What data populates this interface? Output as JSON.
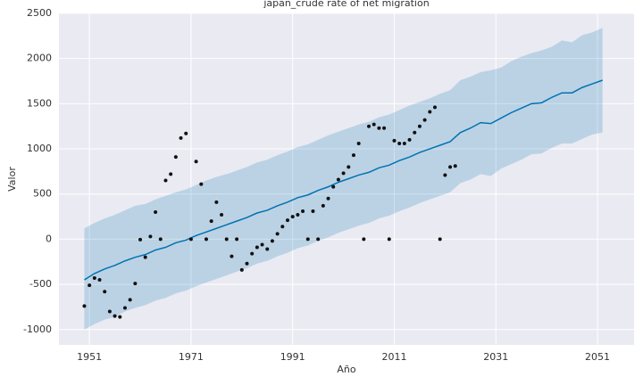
{
  "chart_data": {
    "type": "line",
    "title": "japan_crude rate of net migration",
    "x_label": "Año",
    "y_label": "Valor",
    "xlim": [
      1945,
      2058.2
    ],
    "ylim": [
      -1170,
      2500
    ],
    "xticks": [
      1951,
      1971,
      1991,
      2011,
      2031,
      2051
    ],
    "yticks": [
      -1000,
      -500,
      0,
      500,
      1000,
      1500,
      2000,
      2500
    ],
    "grid": true,
    "observed": {
      "color": "#111111",
      "x": [
        1950,
        1951,
        1952,
        1953,
        1954,
        1955,
        1956,
        1957,
        1958,
        1959,
        1960,
        1961,
        1962,
        1963,
        1964,
        1965,
        1966,
        1967,
        1968,
        1969,
        1970,
        1971,
        1972,
        1973,
        1974,
        1975,
        1976,
        1977,
        1978,
        1979,
        1980,
        1981,
        1982,
        1983,
        1984,
        1985,
        1986,
        1987,
        1988,
        1989,
        1990,
        1991,
        1992,
        1993,
        1994,
        1995,
        1996,
        1997,
        1998,
        1999,
        2000,
        2001,
        2002,
        2003,
        2004,
        2005,
        2006,
        2007,
        2008,
        2009,
        2010,
        2011,
        2012,
        2013,
        2014,
        2015,
        2016,
        2017,
        2018,
        2019,
        2020,
        2021,
        2022,
        2023
      ],
      "values": [
        -740,
        -510,
        -430,
        -450,
        -580,
        -800,
        -850,
        -860,
        -760,
        -670,
        -490,
        -5,
        -200,
        30,
        300,
        0,
        650,
        720,
        910,
        1120,
        1170,
        0,
        860,
        610,
        0,
        200,
        410,
        270,
        0,
        -190,
        0,
        -340,
        -270,
        -160,
        -90,
        -60,
        -110,
        -20,
        60,
        140,
        210,
        250,
        270,
        310,
        0,
        310,
        0,
        370,
        450,
        580,
        660,
        730,
        800,
        930,
        1060,
        0,
        1250,
        1270,
        1230,
        1230,
        0,
        1090,
        1060,
        1060,
        1100,
        1180,
        1250,
        1320,
        1410,
        1460,
        0,
        710,
        800,
        810
      ]
    },
    "forecast": {
      "color": "#0072b2",
      "band_color": "#0072b2",
      "x": [
        1950,
        1952,
        1954,
        1956,
        1958,
        1960,
        1962,
        1964,
        1966,
        1968,
        1970,
        1972,
        1974,
        1976,
        1978,
        1980,
        1982,
        1984,
        1986,
        1988,
        1990,
        1992,
        1994,
        1996,
        1998,
        2000,
        2002,
        2004,
        2006,
        2008,
        2010,
        2012,
        2014,
        2016,
        2018,
        2020,
        2022,
        2024,
        2026,
        2028,
        2030,
        2032,
        2034,
        2036,
        2038,
        2040,
        2042,
        2044,
        2046,
        2048,
        2050,
        2052
      ],
      "values": [
        -450,
        -380,
        -330,
        -290,
        -240,
        -200,
        -170,
        -120,
        -90,
        -40,
        -10,
        40,
        80,
        120,
        160,
        200,
        240,
        290,
        320,
        370,
        410,
        460,
        490,
        540,
        580,
        630,
        670,
        710,
        740,
        790,
        820,
        870,
        910,
        960,
        1000,
        1040,
        1080,
        1180,
        1230,
        1290,
        1280,
        1340,
        1400,
        1450,
        1500,
        1510,
        1570,
        1620,
        1620,
        1680,
        1720,
        1760
      ],
      "upper": [
        120,
        180,
        230,
        270,
        320,
        370,
        390,
        440,
        480,
        520,
        550,
        600,
        650,
        690,
        720,
        760,
        800,
        850,
        880,
        930,
        970,
        1020,
        1050,
        1100,
        1150,
        1190,
        1230,
        1270,
        1300,
        1350,
        1380,
        1430,
        1480,
        1520,
        1560,
        1610,
        1650,
        1760,
        1800,
        1850,
        1870,
        1900,
        1970,
        2020,
        2060,
        2090,
        2130,
        2200,
        2180,
        2260,
        2290,
        2340
      ],
      "lower": [
        -1000,
        -940,
        -890,
        -860,
        -800,
        -760,
        -730,
        -680,
        -650,
        -600,
        -570,
        -520,
        -480,
        -440,
        -400,
        -360,
        -320,
        -270,
        -240,
        -190,
        -150,
        -100,
        -70,
        -20,
        20,
        70,
        110,
        150,
        180,
        230,
        260,
        310,
        350,
        400,
        440,
        480,
        520,
        620,
        660,
        720,
        700,
        780,
        830,
        880,
        940,
        950,
        1010,
        1060,
        1060,
        1110,
        1160,
        1180
      ]
    }
  }
}
